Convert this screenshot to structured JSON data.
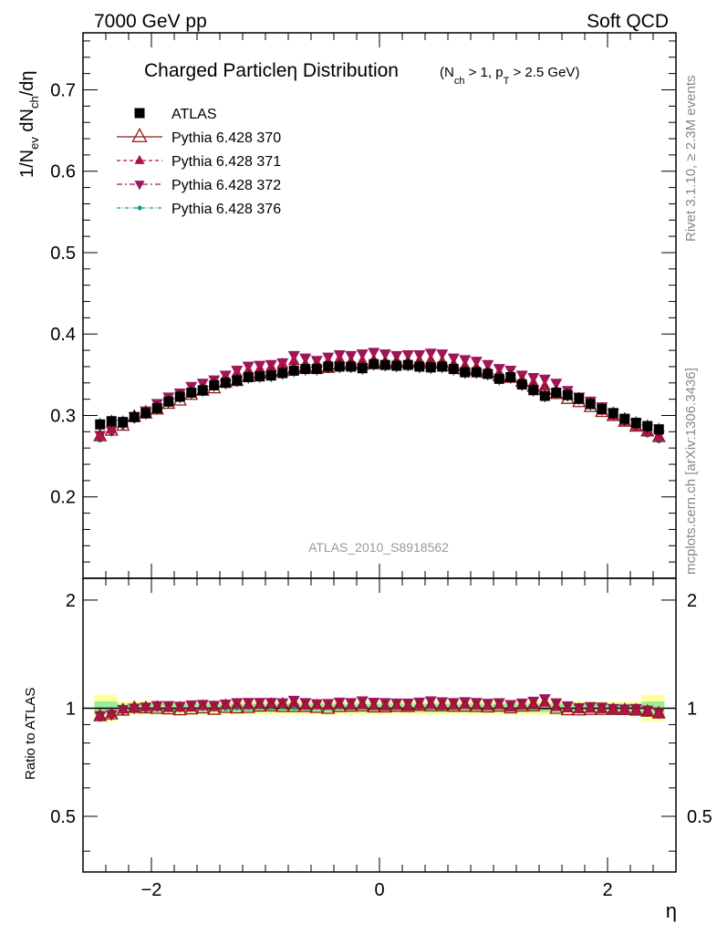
{
  "header": {
    "left": "7000 GeV pp",
    "right": "Soft QCD"
  },
  "chart_data": [
    {
      "type": "scatter",
      "title": "Charged Particleη Distribution",
      "subtitle": "(N_ch > 1, p_T > 2.5 GeV)",
      "ylabel": "1/N_ev dN_ch/dη",
      "xlabel": "η",
      "xlim": [
        -2.6,
        2.6
      ],
      "ylim": [
        0.1,
        0.77
      ],
      "xticks": [
        -2,
        0,
        2
      ],
      "xtick_labels": [
        "−2",
        "0",
        "2"
      ],
      "yticks": [
        0.2,
        0.3,
        0.4,
        0.5,
        0.6,
        0.7
      ],
      "ytick_labels": [
        "0.2",
        "0.3",
        "0.4",
        "0.5",
        "0.6",
        "0.7"
      ],
      "legend_position": "top-left",
      "watermark": "ATLAS_2010_S8918562",
      "right_labels": [
        "Rivet 3.1.10, ≥ 2.3M events",
        "mcplots.cern.ch [arXiv:1306.3436]"
      ],
      "x": [
        -2.45,
        -2.35,
        -2.25,
        -2.15,
        -2.05,
        -1.95,
        -1.85,
        -1.75,
        -1.65,
        -1.55,
        -1.45,
        -1.35,
        -1.25,
        -1.15,
        -1.05,
        -0.95,
        -0.85,
        -0.75,
        -0.65,
        -0.55,
        -0.45,
        -0.35,
        -0.25,
        -0.15,
        -0.05,
        0.05,
        0.15,
        0.25,
        0.35,
        0.45,
        0.55,
        0.65,
        0.75,
        0.85,
        0.95,
        1.05,
        1.15,
        1.25,
        1.35,
        1.45,
        1.55,
        1.65,
        1.75,
        1.85,
        1.95,
        2.05,
        2.15,
        2.25,
        2.35,
        2.45
      ],
      "series": [
        {
          "name": "ATLAS",
          "color": "#000000",
          "marker": "square",
          "values": [
            0.289,
            0.293,
            0.292,
            0.298,
            0.303,
            0.309,
            0.317,
            0.323,
            0.328,
            0.331,
            0.337,
            0.34,
            0.343,
            0.347,
            0.348,
            0.349,
            0.352,
            0.355,
            0.357,
            0.357,
            0.36,
            0.36,
            0.36,
            0.358,
            0.363,
            0.362,
            0.361,
            0.362,
            0.36,
            0.359,
            0.36,
            0.357,
            0.353,
            0.353,
            0.351,
            0.345,
            0.347,
            0.338,
            0.331,
            0.324,
            0.328,
            0.325,
            0.321,
            0.314,
            0.308,
            0.303,
            0.296,
            0.291,
            0.287,
            0.283
          ]
        },
        {
          "name": "Pythia 6.428 370",
          "color": "#8b1a1a",
          "marker": "open-triangle",
          "values": [
            0.274,
            0.281,
            0.287,
            0.298,
            0.302,
            0.307,
            0.314,
            0.318,
            0.325,
            0.33,
            0.333,
            0.34,
            0.342,
            0.347,
            0.351,
            0.353,
            0.354,
            0.357,
            0.359,
            0.357,
            0.358,
            0.362,
            0.363,
            0.362,
            0.364,
            0.363,
            0.364,
            0.364,
            0.365,
            0.363,
            0.364,
            0.36,
            0.356,
            0.355,
            0.352,
            0.348,
            0.346,
            0.341,
            0.335,
            0.331,
            0.326,
            0.32,
            0.316,
            0.31,
            0.304,
            0.299,
            0.292,
            0.286,
            0.28,
            0.273
          ]
        },
        {
          "name": "Pythia 6.428 371",
          "color": "#b0124f",
          "marker": "triangle",
          "values": [
            0.275,
            0.283,
            0.29,
            0.297,
            0.305,
            0.312,
            0.318,
            0.325,
            0.33,
            0.336,
            0.34,
            0.347,
            0.352,
            0.355,
            0.357,
            0.359,
            0.363,
            0.367,
            0.363,
            0.364,
            0.366,
            0.369,
            0.366,
            0.367,
            0.368,
            0.366,
            0.367,
            0.366,
            0.367,
            0.368,
            0.366,
            0.363,
            0.361,
            0.359,
            0.356,
            0.352,
            0.349,
            0.344,
            0.34,
            0.336,
            0.331,
            0.325,
            0.319,
            0.313,
            0.306,
            0.3,
            0.293,
            0.287,
            0.28,
            0.274
          ]
        },
        {
          "name": "Pythia 6.428 372",
          "color": "#9c1659",
          "marker": "triangle-down",
          "values": [
            0.276,
            0.282,
            0.29,
            0.299,
            0.306,
            0.315,
            0.323,
            0.328,
            0.336,
            0.34,
            0.344,
            0.35,
            0.356,
            0.361,
            0.362,
            0.363,
            0.365,
            0.374,
            0.371,
            0.368,
            0.372,
            0.375,
            0.374,
            0.376,
            0.378,
            0.376,
            0.374,
            0.375,
            0.375,
            0.377,
            0.376,
            0.371,
            0.369,
            0.367,
            0.363,
            0.358,
            0.356,
            0.35,
            0.347,
            0.345,
            0.34,
            0.331,
            0.323,
            0.318,
            0.311,
            0.303,
            0.295,
            0.291,
            0.284,
            0.276
          ]
        },
        {
          "name": "Pythia 6.428 376",
          "color": "#129486",
          "marker": "dot",
          "values": [
            0.27,
            0.278,
            0.286,
            0.294,
            0.3,
            0.307,
            0.314,
            0.32,
            0.326,
            0.331,
            0.336,
            0.34,
            0.344,
            0.348,
            0.351,
            0.353,
            0.355,
            0.357,
            0.359,
            0.361,
            0.362,
            0.363,
            0.364,
            0.364,
            0.365,
            0.365,
            0.364,
            0.364,
            0.363,
            0.362,
            0.361,
            0.359,
            0.357,
            0.355,
            0.353,
            0.35,
            0.347,
            0.344,
            0.34,
            0.335,
            0.33,
            0.325,
            0.319,
            0.313,
            0.306,
            0.299,
            0.291,
            0.284,
            0.276,
            0.269
          ]
        }
      ]
    },
    {
      "type": "scatter",
      "title": "",
      "ylabel": "Ratio to ATLAS",
      "xlabel": "η",
      "xlim": [
        -2.6,
        2.6
      ],
      "ylim": [
        0.35,
        2.3
      ],
      "yticks": [
        0.5,
        1,
        2
      ],
      "ytick_labels": [
        "0.5",
        "1",
        "2"
      ],
      "reference": 1,
      "series": [
        {
          "name": "Pythia 6.428 370",
          "color": "#8b1a1a",
          "marker": "open-triangle",
          "values": [
            0.948,
            0.959,
            0.983,
            1.0,
            0.997,
            0.994,
            0.991,
            0.985,
            0.991,
            0.997,
            0.988,
            1.0,
            0.997,
            1.0,
            1.009,
            1.011,
            1.006,
            1.006,
            1.006,
            1.0,
            0.994,
            1.006,
            1.008,
            1.011,
            1.003,
            1.003,
            1.008,
            1.006,
            1.014,
            1.011,
            1.011,
            1.008,
            1.008,
            1.006,
            1.003,
            1.009,
            0.997,
            1.009,
            1.012,
            1.022,
            0.994,
            0.985,
            0.984,
            0.987,
            0.987,
            0.987,
            0.986,
            0.983,
            0.976,
            0.965
          ]
        },
        {
          "name": "Pythia 6.428 371",
          "color": "#b0124f",
          "marker": "triangle",
          "values": [
            0.952,
            0.966,
            0.993,
            0.997,
            1.007,
            1.01,
            1.003,
            1.006,
            1.006,
            1.015,
            1.009,
            1.021,
            1.026,
            1.023,
            1.026,
            1.029,
            1.031,
            1.034,
            1.017,
            1.02,
            1.017,
            1.025,
            1.017,
            1.025,
            1.014,
            1.011,
            1.017,
            1.011,
            1.019,
            1.025,
            1.017,
            1.017,
            1.023,
            1.017,
            1.014,
            1.02,
            1.006,
            1.018,
            1.027,
            1.037,
            1.009,
            1.0,
            0.994,
            0.997,
            0.994,
            0.99,
            0.99,
            0.986,
            0.976,
            0.968
          ]
        },
        {
          "name": "Pythia 6.428 372",
          "color": "#9c1659",
          "marker": "triangle-down",
          "values": [
            0.955,
            0.962,
            0.993,
            1.003,
            1.01,
            1.019,
            1.019,
            1.015,
            1.024,
            1.027,
            1.021,
            1.029,
            1.038,
            1.04,
            1.04,
            1.04,
            1.037,
            1.054,
            1.039,
            1.031,
            1.033,
            1.042,
            1.039,
            1.05,
            1.041,
            1.039,
            1.036,
            1.036,
            1.042,
            1.05,
            1.044,
            1.039,
            1.045,
            1.04,
            1.034,
            1.038,
            1.026,
            1.036,
            1.048,
            1.065,
            1.037,
            1.018,
            1.006,
            1.013,
            1.01,
            1.0,
            0.997,
            1.0,
            0.99,
            0.975
          ]
        },
        {
          "name": "Pythia 6.428 376",
          "color": "#129486",
          "marker": "dot",
          "values": [
            0.934,
            0.949,
            0.979,
            0.987,
            0.99,
            0.994,
            0.991,
            0.991,
            0.994,
            1.0,
            0.997,
            1.0,
            1.003,
            1.003,
            1.009,
            1.011,
            1.009,
            1.006,
            1.006,
            1.011,
            1.006,
            1.008,
            1.011,
            1.017,
            1.006,
            1.008,
            1.008,
            1.006,
            1.008,
            1.008,
            1.003,
            1.006,
            1.011,
            1.006,
            1.006,
            1.014,
            1.0,
            1.018,
            1.027,
            1.034,
            1.006,
            1.0,
            0.994,
            0.997,
            0.994,
            0.987,
            0.983,
            0.976,
            0.962,
            0.951
          ]
        }
      ]
    }
  ]
}
